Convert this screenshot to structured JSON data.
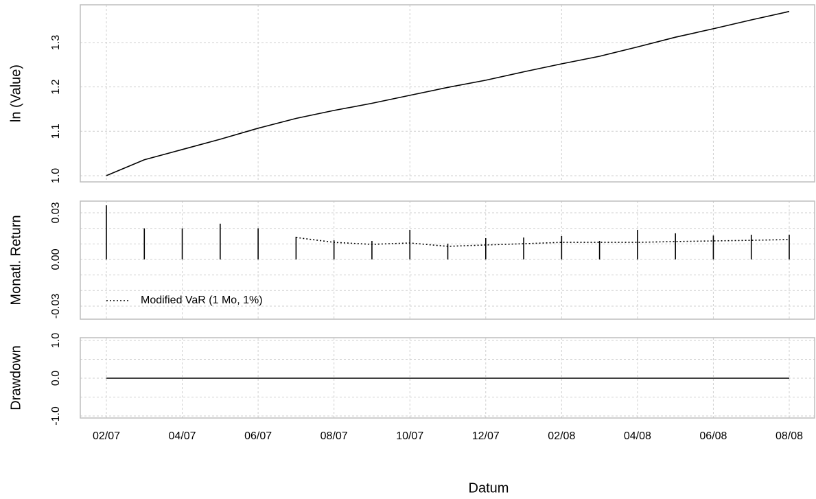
{
  "chart_data": [
    {
      "type": "line",
      "ylabel": "ln (Value)",
      "color": "#000000",
      "values": [
        1.0,
        1.036,
        1.059,
        1.082,
        1.107,
        1.129,
        1.147,
        1.163,
        1.181,
        1.199,
        1.215,
        1.234,
        1.252,
        1.269,
        1.29,
        1.312,
        1.331,
        1.351,
        1.37
      ],
      "ylim": [
        0.986,
        1.385
      ],
      "yticks": [
        {
          "value": 1.0,
          "label": "1.0"
        },
        {
          "value": 1.1,
          "label": "1.1"
        },
        {
          "value": 1.2,
          "label": "1.2"
        },
        {
          "value": 1.3,
          "label": "1.3"
        }
      ],
      "grid": true
    },
    {
      "type": "bar",
      "ylabel": "Monatl. Return",
      "series": [
        {
          "type": "bar",
          "color": "#000000",
          "values": [
            0.0348,
            0.02,
            0.02,
            0.023,
            0.02,
            0.0146,
            0.0123,
            0.0119,
            0.019,
            0.0101,
            0.0137,
            0.0141,
            0.015,
            0.0119,
            0.019,
            0.0168,
            0.0154,
            0.0159,
            0.0159
          ]
        },
        {
          "type": "line",
          "name": "Modified VaR (1 Mo, 1%)",
          "color": "#000000",
          "dash": "dotted",
          "values": [
            null,
            null,
            null,
            null,
            null,
            0.0141,
            0.011,
            0.0097,
            0.0106,
            0.0084,
            0.0093,
            0.0101,
            0.011,
            0.011,
            0.011,
            0.0115,
            0.0119,
            0.0123,
            0.0128
          ]
        }
      ],
      "ylim": [
        -0.0384,
        0.0375
      ],
      "yticks": [
        {
          "value": 0.03,
          "label": "0.03"
        },
        {
          "value": 0.0,
          "label": "0.00"
        },
        {
          "value": -0.03,
          "label": "-0.03"
        }
      ],
      "minor_grid": [
        0.02,
        0.01,
        -0.01,
        -0.02
      ],
      "grid": true,
      "legend": "bottomleft"
    },
    {
      "type": "line",
      "ylabel": "Drawdown",
      "xlabel": "Datum",
      "color": "#000000",
      "categories": [
        "02/07",
        null,
        "04/07",
        null,
        "06/07",
        null,
        "08/07",
        null,
        "10/07",
        null,
        "12/07",
        null,
        "02/08",
        null,
        "04/08",
        null,
        "06/08",
        null,
        "08/08"
      ],
      "values": [
        0,
        0,
        0,
        0,
        0,
        0,
        0,
        0,
        0,
        0,
        0,
        0,
        0,
        0,
        0,
        0,
        0,
        0,
        0
      ],
      "ylim": [
        -1.055,
        1.073
      ],
      "yticks": [
        {
          "value": 1.0,
          "label": "1.0"
        },
        {
          "value": 0.0,
          "label": "0.0"
        },
        {
          "value": -1.0,
          "label": "-1.0"
        }
      ],
      "minor_grid": [
        0.5,
        -0.5
      ],
      "grid": true
    }
  ]
}
